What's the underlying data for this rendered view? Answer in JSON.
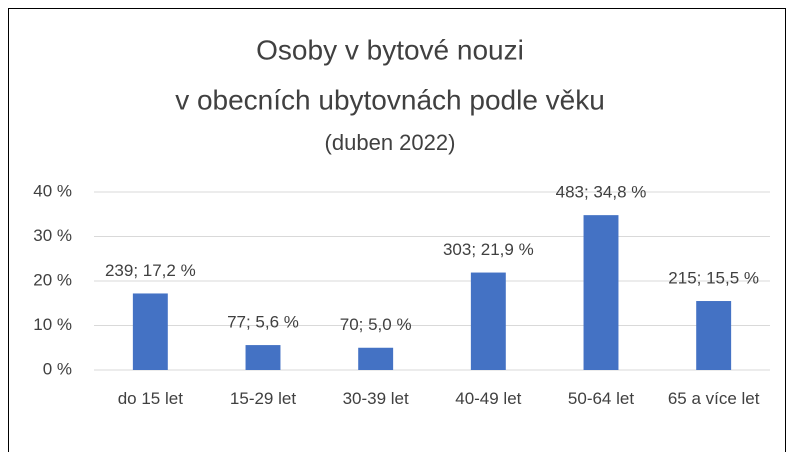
{
  "chart_data": {
    "type": "bar",
    "title": [
      "Osoby v bytové nouzi",
      "v obecních ubytovnách podle věku"
    ],
    "subtitle": "(duben 2022)",
    "categories": [
      "do 15 let",
      "15-29 let",
      "30-39 let",
      "40-49 let",
      "50-64 let",
      "65 a více let"
    ],
    "values": [
      17.2,
      5.6,
      5.0,
      21.9,
      34.8,
      15.5
    ],
    "value_labels": [
      "239; 17,2 %",
      "77; 5,6 %",
      "70; 5,0 %",
      "303; 21,9 %",
      "483; 34,8 %",
      "215; 15,5 %"
    ],
    "color": "#4472c4",
    "ylim": [
      0,
      40
    ],
    "yticks": [
      {
        "value": 0,
        "label": "0 %"
      },
      {
        "value": 10,
        "label": "10 %"
      },
      {
        "value": 20,
        "label": "20 %"
      },
      {
        "value": 30,
        "label": "30 %"
      },
      {
        "value": 40,
        "label": "40 %"
      }
    ],
    "grid": true
  }
}
